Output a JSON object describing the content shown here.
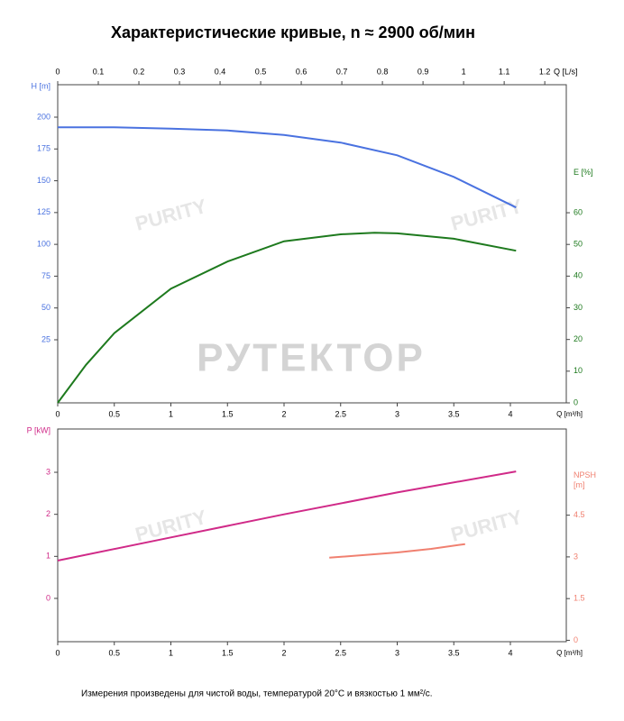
{
  "title": "Характеристические кривые, n ≈ 2900 об/мин",
  "footnote": "Измерения произведены для чистой воды, температурой 20°C и вязкостью 1 мм²/с.",
  "watermark": "РУТЕКТОР",
  "logo": "PURITY",
  "chart_data": [
    {
      "type": "line",
      "xlabel": "Q [m³/h]",
      "xlim": [
        0,
        4.494
      ],
      "xticks": [
        0,
        0.5,
        1,
        1.5,
        2,
        2.5,
        3,
        3.5,
        4
      ],
      "x2label": "Q [L/s]",
      "x2lim": [
        0,
        1.253
      ],
      "x2ticks": [
        0,
        0.1,
        0.2,
        0.3,
        0.4,
        0.5,
        0.6,
        0.7,
        0.8,
        0.9,
        1,
        1.1,
        1.2
      ],
      "ylabel": "H [m]",
      "ylim": [
        -24.6,
        225.5
      ],
      "yticks": [
        25,
        50,
        75,
        100,
        125,
        150,
        175,
        200
      ],
      "y2label": "E [%]",
      "y2lim": [
        0,
        100.4
      ],
      "y2ticks": [
        0,
        10,
        20,
        30,
        40,
        50,
        60
      ],
      "series": [
        {
          "name": "H",
          "color": "#4a72e0",
          "x": [
            0,
            0.5,
            1,
            1.5,
            2,
            2.5,
            3,
            3.5,
            4.05
          ],
          "values": [
            192,
            192,
            191,
            189.5,
            186,
            180,
            170,
            153,
            129
          ]
        },
        {
          "name": "E",
          "color": "#1e7a1e",
          "axis": "y2",
          "x": [
            0,
            0.25,
            0.5,
            1,
            1.5,
            2,
            2.5,
            2.8,
            3,
            3.5,
            4.05
          ],
          "values": [
            0,
            12,
            22,
            36,
            44.6,
            51,
            53.2,
            53.7,
            53.5,
            51.8,
            48
          ]
        }
      ]
    },
    {
      "type": "line",
      "xlabel": "Q [m³/h]",
      "xlim": [
        0,
        4.494
      ],
      "xticks": [
        0,
        0.5,
        1,
        1.5,
        2,
        2.5,
        3,
        3.5,
        4
      ],
      "ylabel": "P [kW]",
      "ylim": [
        -1.03,
        4.03
      ],
      "yticks": [
        0,
        1,
        2,
        3
      ],
      "y2label": "NPSH [m]",
      "y2lim": [
        -0.05,
        7.6
      ],
      "y2ticks": [
        0,
        1.5,
        3,
        4.5
      ],
      "series": [
        {
          "name": "P",
          "color": "#d02a88",
          "x": [
            0,
            1,
            2,
            3,
            4.05
          ],
          "values": [
            0.9,
            1.45,
            2.0,
            2.52,
            3.02
          ]
        },
        {
          "name": "NPSH",
          "color": "#f08070",
          "axis": "y2",
          "x": [
            2.4,
            3,
            3.3,
            3.6
          ],
          "values": [
            2.97,
            3.16,
            3.29,
            3.46
          ]
        }
      ]
    }
  ]
}
